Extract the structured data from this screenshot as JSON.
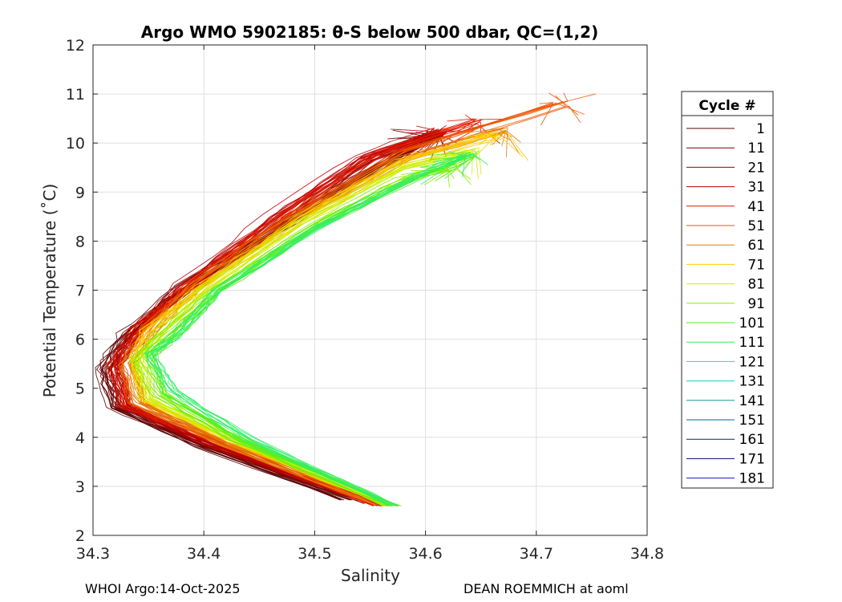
{
  "chart_data": {
    "type": "line",
    "title": "Argo WMO 5902185: θ-S below 500 dbar,  QC=(1,2)",
    "xlabel": "Salinity",
    "ylabel": "Potential Temperature (˚C)",
    "xlim": [
      34.3,
      34.8
    ],
    "ylim": [
      2,
      12
    ],
    "xticks": [
      "34.3",
      "34.4",
      "34.5",
      "34.6",
      "34.7",
      "34.8"
    ],
    "yticks": [
      "2",
      "3",
      "4",
      "5",
      "6",
      "7",
      "8",
      "9",
      "10",
      "11",
      "12"
    ],
    "grid": true,
    "legend_title": "Cycle #",
    "legend_position": "right",
    "series": [
      {
        "name": "1",
        "color": "#5a0000",
        "anchors": [
          [
            34.53,
            2.72
          ],
          [
            34.4,
            3.8
          ],
          [
            34.32,
            4.6
          ],
          [
            34.31,
            5.4
          ],
          [
            34.33,
            6.1
          ],
          [
            34.38,
            7.0
          ],
          [
            34.48,
            8.4
          ],
          [
            34.56,
            9.6
          ],
          [
            34.62,
            10.3
          ]
        ]
      },
      {
        "name": "11",
        "color": "#7a0000",
        "anchors": [
          [
            34.54,
            2.7
          ],
          [
            34.4,
            3.82
          ],
          [
            34.32,
            4.65
          ],
          [
            34.31,
            5.4
          ],
          [
            34.33,
            6.1
          ],
          [
            34.38,
            7.0
          ],
          [
            34.47,
            8.4
          ],
          [
            34.56,
            9.6
          ],
          [
            34.61,
            10.25
          ]
        ]
      },
      {
        "name": "21",
        "color": "#9a0000",
        "anchors": [
          [
            34.55,
            2.65
          ],
          [
            34.41,
            3.82
          ],
          [
            34.33,
            4.65
          ],
          [
            34.32,
            5.45
          ],
          [
            34.34,
            6.15
          ],
          [
            34.38,
            7.05
          ],
          [
            34.47,
            8.45
          ],
          [
            34.55,
            9.7
          ],
          [
            34.63,
            10.35
          ]
        ]
      },
      {
        "name": "31",
        "color": "#c00000",
        "anchors": [
          [
            34.56,
            2.6
          ],
          [
            34.41,
            3.8
          ],
          [
            34.33,
            4.6
          ],
          [
            34.32,
            5.45
          ],
          [
            34.34,
            6.2
          ],
          [
            34.38,
            7.1
          ],
          [
            34.46,
            8.5
          ],
          [
            34.54,
            9.7
          ],
          [
            34.63,
            10.4
          ]
        ]
      },
      {
        "name": "41",
        "color": "#e01a00",
        "anchors": [
          [
            34.56,
            2.6
          ],
          [
            34.42,
            3.85
          ],
          [
            34.33,
            4.65
          ],
          [
            34.32,
            5.5
          ],
          [
            34.34,
            6.2
          ],
          [
            34.39,
            7.1
          ],
          [
            34.47,
            8.5
          ],
          [
            34.56,
            9.8
          ],
          [
            34.67,
            10.6
          ]
        ]
      },
      {
        "name": "51",
        "color": "#ee5500",
        "anchors": [
          [
            34.56,
            2.62
          ],
          [
            34.42,
            3.85
          ],
          [
            34.34,
            4.7
          ],
          [
            34.33,
            5.5
          ],
          [
            34.35,
            6.2
          ],
          [
            34.39,
            7.1
          ],
          [
            34.48,
            8.5
          ],
          [
            34.58,
            9.8
          ],
          [
            34.76,
            11.05
          ]
        ]
      },
      {
        "name": "61",
        "color": "#e08000",
        "anchors": [
          [
            34.56,
            2.62
          ],
          [
            34.42,
            3.85
          ],
          [
            34.34,
            4.7
          ],
          [
            34.33,
            5.5
          ],
          [
            34.35,
            6.15
          ],
          [
            34.39,
            7.05
          ],
          [
            34.48,
            8.45
          ],
          [
            34.58,
            9.7
          ],
          [
            34.69,
            10.4
          ]
        ]
      },
      {
        "name": "71",
        "color": "#ffcc00",
        "anchors": [
          [
            34.57,
            2.6
          ],
          [
            34.43,
            3.9
          ],
          [
            34.35,
            4.75
          ],
          [
            34.34,
            5.55
          ],
          [
            34.35,
            6.15
          ],
          [
            34.4,
            7.05
          ],
          [
            34.49,
            8.45
          ],
          [
            34.58,
            9.6
          ],
          [
            34.69,
            10.3
          ]
        ]
      },
      {
        "name": "81",
        "color": "#ccee00",
        "anchors": [
          [
            34.57,
            2.6
          ],
          [
            34.43,
            3.92
          ],
          [
            34.35,
            4.8
          ],
          [
            34.34,
            5.6
          ],
          [
            34.36,
            6.1
          ],
          [
            34.4,
            7.0
          ],
          [
            34.49,
            8.4
          ],
          [
            34.58,
            9.5
          ],
          [
            34.66,
            9.95
          ]
        ]
      },
      {
        "name": "91",
        "color": "#88ee00",
        "anchors": [
          [
            34.57,
            2.6
          ],
          [
            34.43,
            3.95
          ],
          [
            34.36,
            4.85
          ],
          [
            34.34,
            5.6
          ],
          [
            34.36,
            6.05
          ],
          [
            34.41,
            7.0
          ],
          [
            34.5,
            8.35
          ],
          [
            34.58,
            9.3
          ],
          [
            34.63,
            9.55
          ]
        ]
      },
      {
        "name": "101",
        "color": "#55ee22",
        "anchors": [
          [
            34.57,
            2.6
          ],
          [
            34.43,
            3.95
          ],
          [
            34.36,
            4.9
          ],
          [
            34.35,
            5.65
          ],
          [
            34.37,
            6.05
          ],
          [
            34.41,
            7.0
          ],
          [
            34.5,
            8.3
          ],
          [
            34.59,
            9.3
          ],
          [
            34.65,
            9.85
          ]
        ]
      },
      {
        "name": "111",
        "color": "#33ee66",
        "anchors": [
          [
            34.57,
            2.6
          ],
          [
            34.44,
            3.95
          ],
          [
            34.37,
            4.95
          ],
          [
            34.35,
            5.7
          ],
          [
            34.37,
            6.0
          ],
          [
            34.41,
            6.95
          ],
          [
            34.5,
            8.25
          ],
          [
            34.59,
            9.3
          ],
          [
            34.65,
            9.85
          ]
        ]
      },
      {
        "name": "121",
        "color": "#22ddaa",
        "anchors": []
      },
      {
        "name": "131",
        "color": "#22cccc",
        "anchors": []
      },
      {
        "name": "141",
        "color": "#1a9999",
        "anchors": []
      },
      {
        "name": "151",
        "color": "#0a6a88",
        "anchors": []
      },
      {
        "name": "161",
        "color": "#0a2a55",
        "anchors": []
      },
      {
        "name": "171",
        "color": "#0a0a66",
        "anchors": []
      },
      {
        "name": "181",
        "color": "#1a1acc",
        "anchors": []
      }
    ]
  },
  "footer": {
    "left": "WHOI Argo:14-Oct-2025",
    "right": "DEAN ROEMMICH at aoml"
  }
}
